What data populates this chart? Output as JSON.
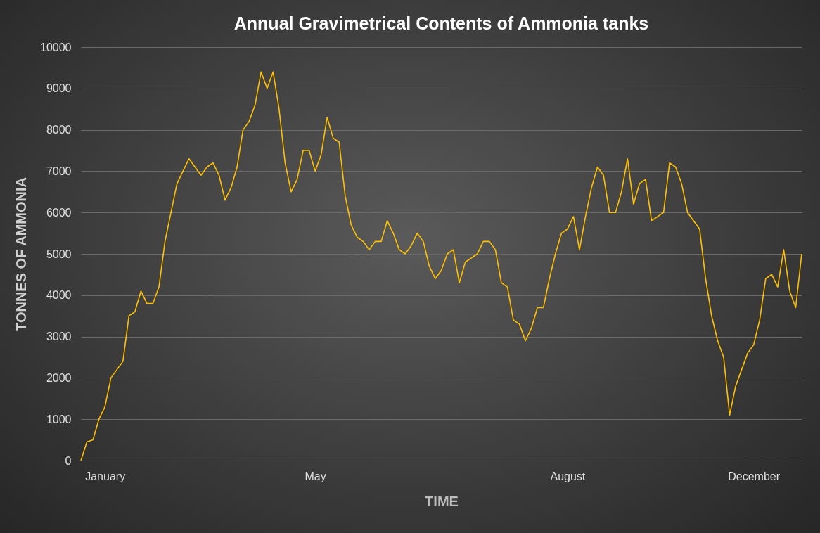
{
  "chart_data": {
    "type": "line",
    "title": "Annual Gravimetrical Contents of Ammonia tanks",
    "xlabel": "TIME",
    "ylabel": "TONNES OF AMMONIA",
    "categories": [
      null,
      null,
      null,
      null,
      "January",
      null,
      null,
      null,
      null,
      null,
      null,
      null,
      null,
      null,
      null,
      null,
      null,
      null,
      null,
      null,
      null,
      null,
      null,
      null,
      null,
      null,
      null,
      null,
      null,
      null,
      null,
      null,
      null,
      null,
      null,
      null,
      null,
      null,
      null,
      "May",
      null,
      null,
      null,
      null,
      null,
      null,
      null,
      null,
      null,
      null,
      null,
      null,
      null,
      null,
      null,
      null,
      null,
      null,
      null,
      null,
      null,
      null,
      null,
      null,
      null,
      null,
      null,
      null,
      null,
      null,
      null,
      null,
      null,
      null,
      null,
      null,
      null,
      null,
      null,
      null,
      null,
      "August",
      null,
      null,
      null,
      null,
      null,
      null,
      null,
      null,
      null,
      null,
      null,
      null,
      null,
      null,
      null,
      null,
      null,
      null,
      null,
      null,
      null,
      null,
      null,
      null,
      null,
      null,
      null,
      null,
      null,
      null,
      "December",
      null,
      null,
      null,
      null,
      null,
      null,
      null,
      null
    ],
    "series": [
      {
        "color": "#ffc000",
        "values": [
          0,
          450,
          500,
          1000,
          1300,
          2000,
          2200,
          2400,
          3500,
          3600,
          4100,
          3800,
          3800,
          4200,
          5300,
          6000,
          6700,
          7000,
          7300,
          7100,
          6900,
          7100,
          7200,
          6900,
          6300,
          6600,
          7100,
          8000,
          8200,
          8600,
          9400,
          9000,
          9400,
          8500,
          7200,
          6500,
          6800,
          7500,
          7500,
          7000,
          7400,
          8300,
          7800,
          7700,
          6400,
          5700,
          5400,
          5300,
          5100,
          5300,
          5300,
          5800,
          5500,
          5100,
          5000,
          5200,
          5500,
          5300,
          4700,
          4400,
          4600,
          5000,
          5100,
          4300,
          4800,
          4900,
          5000,
          5300,
          5300,
          5100,
          4300,
          4200,
          3400,
          3300,
          2900,
          3200,
          3700,
          3700,
          4400,
          5000,
          5500,
          5600,
          5900,
          5100,
          5900,
          6600,
          7100,
          6900,
          6000,
          6000,
          6500,
          7300,
          6200,
          6700,
          6800,
          5800,
          5900,
          6000,
          7200,
          7100,
          6700,
          6000,
          5800,
          5600,
          4400,
          3500,
          2900,
          2500,
          1100,
          1800,
          2200,
          2600,
          2800,
          3400,
          4400,
          4500,
          4200,
          5100,
          4100,
          3700,
          5000
        ]
      }
    ],
    "ylim": [
      0,
      10000
    ],
    "yticks": [
      0,
      1000,
      2000,
      3000,
      4000,
      5000,
      6000,
      7000,
      8000,
      9000,
      10000
    ],
    "grid": "y",
    "marker": "none",
    "line_style": "solid"
  }
}
